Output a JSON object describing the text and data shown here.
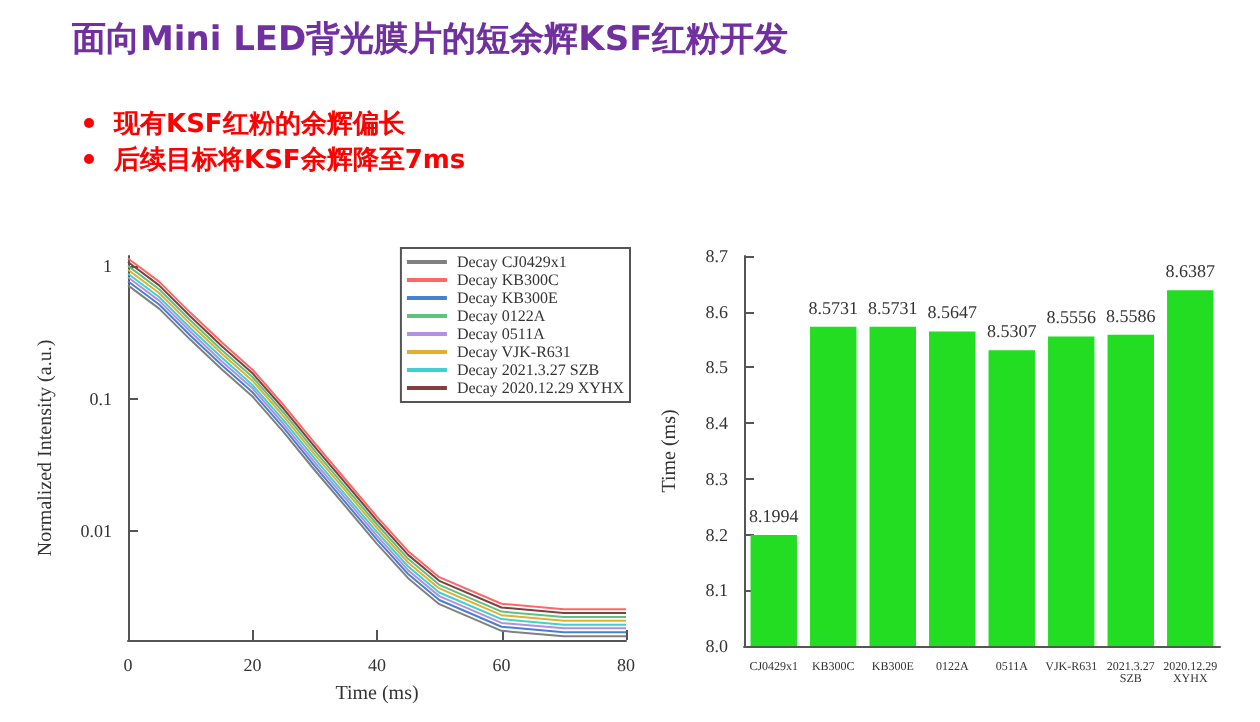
{
  "chart_data": [
    {
      "type": "line",
      "title": "面向Mini LED背光膜片的短余辉KSF红粉开发",
      "annotations": [
        "现有KSF红粉的余辉偏长",
        "后续目标将KSF余辉降至7ms"
      ],
      "xlabel": "Time (ms)",
      "ylabel": "Normalized Intensity (a.u.)",
      "x": [
        0,
        5,
        10,
        15,
        20,
        25,
        30,
        35,
        40,
        45,
        50,
        60,
        70,
        80
      ],
      "xlim": [
        0,
        80
      ],
      "xticks": [
        0,
        20,
        40,
        60,
        80
      ],
      "ylim": [
        0.0015,
        1.2
      ],
      "yticks": [
        0.01,
        0.1,
        1
      ],
      "log": "y",
      "legend": "top right",
      "grid": false,
      "series": [
        {
          "name": "Decay CJ0429x1",
          "color": "#808080",
          "values": [
            0.72,
            0.48,
            0.28,
            0.168,
            0.104,
            0.056,
            0.0288,
            0.0152,
            0.008,
            0.0044,
            0.0028,
            0.00176,
            0.0016,
            0.0016
          ]
        },
        {
          "name": "Decay KB300C",
          "color": "#ff6666",
          "values": [
            1.15,
            0.768,
            0.448,
            0.269,
            0.166,
            0.0896,
            0.0461,
            0.0243,
            0.0128,
            0.00704,
            0.00448,
            0.00282,
            0.00256,
            0.00256
          ]
        },
        {
          "name": "Decay KB300E",
          "color": "#4a7fd8",
          "values": [
            0.774,
            0.516,
            0.301,
            0.181,
            0.112,
            0.0602,
            0.031,
            0.0163,
            0.0086,
            0.00473,
            0.00301,
            0.00189,
            0.00172,
            0.00172
          ]
        },
        {
          "name": "Decay 0122A",
          "color": "#60c080",
          "values": [
            1.01,
            0.672,
            0.392,
            0.235,
            0.146,
            0.0784,
            0.0403,
            0.0213,
            0.0112,
            0.00616,
            0.00392,
            0.00246,
            0.00224,
            0.00224
          ]
        },
        {
          "name": "Decay 0511A",
          "color": "#b090e0",
          "values": [
            0.828,
            0.552,
            0.322,
            0.193,
            0.12,
            0.0644,
            0.0331,
            0.0175,
            0.0092,
            0.00506,
            0.00322,
            0.00202,
            0.00184,
            0.00184
          ]
        },
        {
          "name": "Decay VJK-R631",
          "color": "#e0b030",
          "values": [
            0.945,
            0.63,
            0.368,
            0.221,
            0.137,
            0.0735,
            0.0378,
            0.02,
            0.0105,
            0.00578,
            0.00368,
            0.00231,
            0.0021,
            0.0021
          ]
        },
        {
          "name": "Decay 2021.3.27 SZB",
          "color": "#40d0d0",
          "values": [
            0.882,
            0.588,
            0.343,
            0.206,
            0.127,
            0.0686,
            0.0353,
            0.0186,
            0.0098,
            0.00539,
            0.00343,
            0.00216,
            0.00196,
            0.00196
          ]
        },
        {
          "name": "Decay 2020.12.29 XYHX",
          "color": "#804040",
          "values": [
            1.08,
            0.72,
            0.42,
            0.252,
            0.156,
            0.084,
            0.0432,
            0.0228,
            0.012,
            0.0066,
            0.0042,
            0.00264,
            0.0024,
            0.0024
          ]
        }
      ]
    },
    {
      "type": "bar",
      "ylabel": "Time (ms)",
      "categories": [
        "CJ0429x1",
        "KB300C",
        "KB300E",
        "0122A",
        "0511A",
        "VJK-R631",
        "2021.3.27 SZB",
        "2020.12.29 XYHX"
      ],
      "values": [
        8.1994,
        8.5731,
        8.5731,
        8.5647,
        8.5307,
        8.5556,
        8.5586,
        8.6387
      ],
      "color": "#22dd22",
      "ylim": [
        8.0,
        8.7
      ],
      "yticks": [
        {
          "value": 8.0,
          "label": "8.0"
        },
        8.1,
        8.2,
        8.3,
        8.4,
        8.5,
        8.6,
        8.7
      ],
      "data_labels": true,
      "grid": false,
      "legend": false
    }
  ]
}
